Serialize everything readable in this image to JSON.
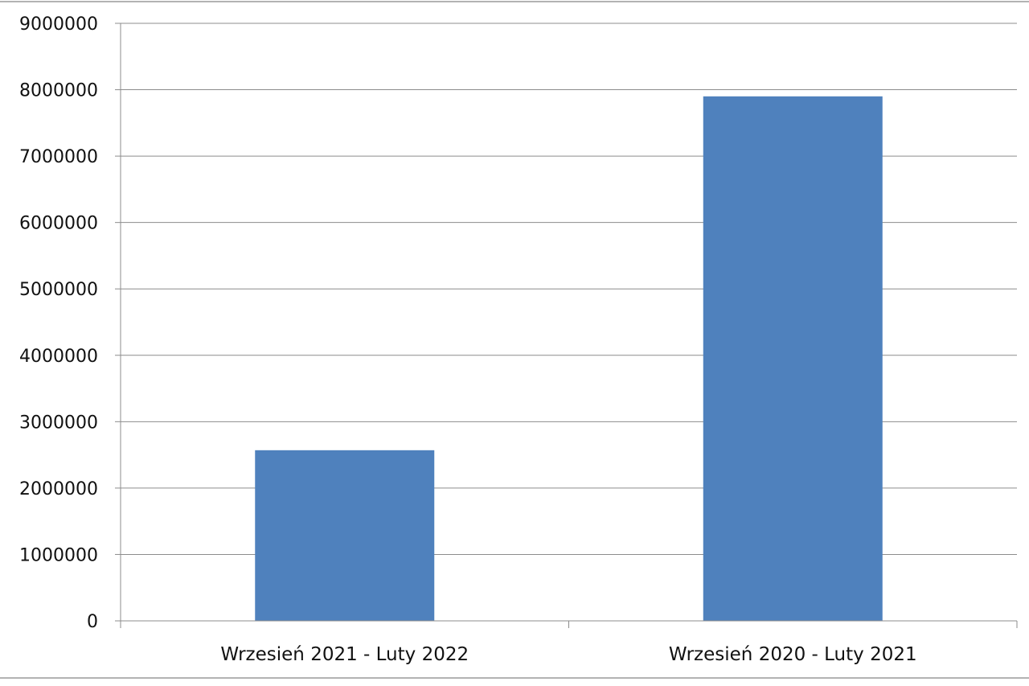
{
  "chart_data": {
    "type": "bar",
    "categories": [
      "Wrzesień 2021 - Luty 2022",
      "Wrzesień 2020 - Luty 2021"
    ],
    "values": [
      2570000,
      7900000
    ],
    "title": "",
    "xlabel": "",
    "ylabel": "",
    "ylim": [
      0,
      9000000
    ],
    "yticks": [
      "0",
      "1000000",
      "2000000",
      "3000000",
      "4000000",
      "5000000",
      "6000000",
      "7000000",
      "8000000",
      "9000000"
    ],
    "grid": true,
    "legend": "none",
    "colors": {
      "bar": "#4f81bd",
      "grid": "#8c8c8c",
      "axis": "#8c8c8c"
    }
  }
}
